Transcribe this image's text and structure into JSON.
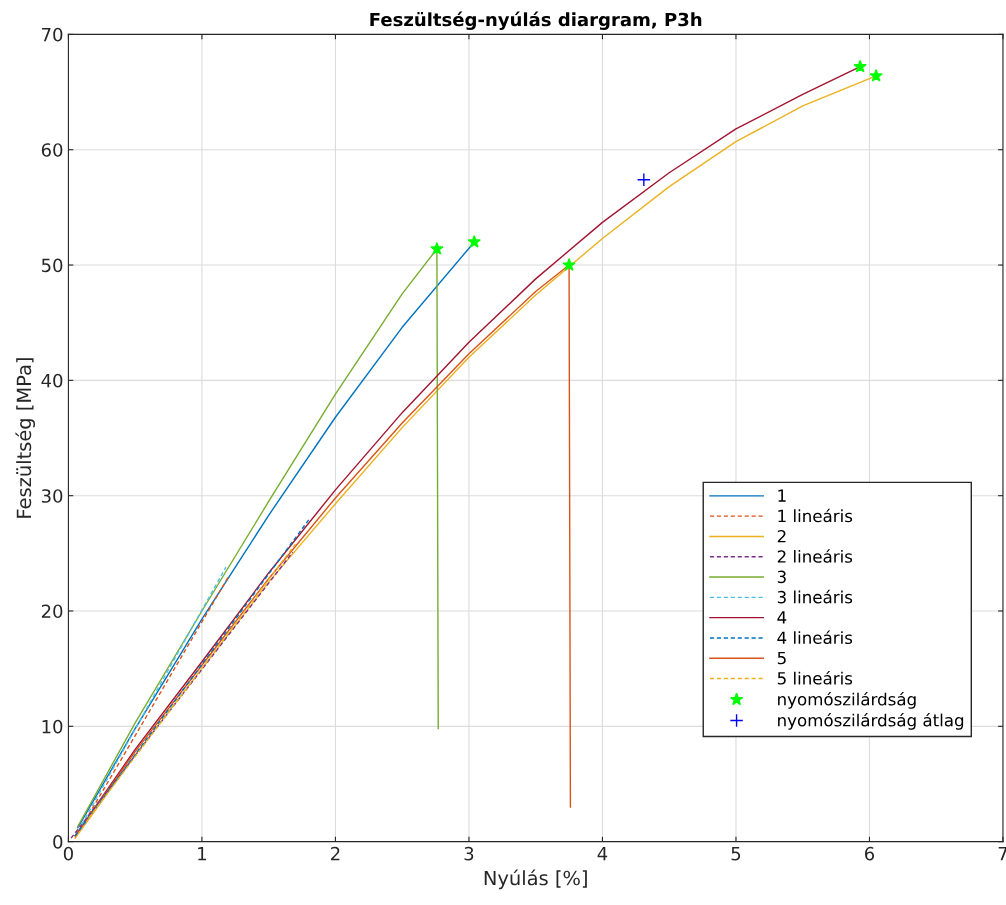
{
  "chart_data": {
    "type": "line",
    "title": "Feszültség-nyúlás diargram, P3h",
    "xlabel": "Nyúlás [%]",
    "ylabel": "Feszültség [MPa]",
    "xlim": [
      0,
      7
    ],
    "ylim": [
      0,
      70
    ],
    "xticks": [
      0,
      1,
      2,
      3,
      4,
      5,
      6,
      7
    ],
    "yticks": [
      0,
      10,
      20,
      30,
      40,
      50,
      60,
      70
    ],
    "grid": true,
    "legend": "bottom right",
    "series": [
      {
        "name": "1",
        "color": "#0072bd",
        "line_style": "solid",
        "x": [
          0.07,
          0.5,
          1,
          1.5,
          2,
          2.5,
          3.04
        ],
        "values": [
          1.2,
          9.8,
          19.3,
          28.3,
          36.8,
          44.6,
          52.0
        ]
      },
      {
        "name": "1 lineáris",
        "color": "#d95319",
        "line_style": "dashed",
        "x": [
          0.1,
          1.2
        ],
        "values": [
          1.3,
          23.0
        ]
      },
      {
        "name": "2",
        "color": "#edb120",
        "line_style": "solid",
        "x": [
          0.05,
          0.5,
          1,
          1.5,
          2,
          2.5,
          3,
          3.5,
          4,
          4.5,
          5,
          5.5,
          6.05
        ],
        "values": [
          0.3,
          7.5,
          15,
          22.5,
          29.3,
          35.9,
          42,
          47.4,
          52.3,
          56.8,
          60.7,
          63.8,
          66.4
        ]
      },
      {
        "name": "2 lineáris",
        "color": "#7e2f8e",
        "line_style": "dashed",
        "x": [
          0.02,
          1.68
        ],
        "values": [
          0.3,
          25.1
        ]
      },
      {
        "name": "3",
        "color": "#77ac30",
        "line_style": "solid",
        "x": [
          0.07,
          0.5,
          1,
          1.5,
          2,
          2.5,
          2.76,
          2.77
        ],
        "values": [
          1.3,
          10.3,
          20.0,
          29.5,
          38.8,
          47.5,
          51.4,
          9.8
        ]
      },
      {
        "name": "3 lineáris",
        "color": "#4dbeee",
        "line_style": "dashed",
        "x": [
          0.1,
          1.18
        ],
        "values": [
          1.5,
          23.8
        ]
      },
      {
        "name": "4",
        "color": "#a2142f",
        "line_style": "solid",
        "x": [
          0.05,
          0.5,
          1,
          1.5,
          2,
          2.5,
          3,
          3.5,
          4,
          4.5,
          5,
          5.5,
          5.93
        ],
        "values": [
          0.5,
          8,
          15.6,
          23.3,
          30.5,
          37.2,
          43.3,
          48.8,
          53.7,
          58,
          61.8,
          64.8,
          67.2
        ]
      },
      {
        "name": "4 lineáris",
        "color": "#0072bd",
        "line_style": "dashed",
        "x": [
          0.05,
          1.8
        ],
        "values": [
          0.5,
          27.9
        ]
      },
      {
        "name": "5",
        "color": "#d95319",
        "line_style": "solid",
        "x": [
          0.05,
          0.5,
          1,
          1.5,
          2,
          2.5,
          3,
          3.5,
          3.75,
          3.76
        ],
        "values": [
          0.5,
          7.8,
          15.3,
          22.8,
          29.8,
          36.3,
          42.3,
          47.7,
          50.0,
          3.0
        ]
      },
      {
        "name": "5 lineáris",
        "color": "#edb120",
        "line_style": "dashed",
        "x": [
          0.15,
          1.7
        ],
        "values": [
          2.0,
          25.8
        ]
      },
      {
        "name": "nyomószilárdság",
        "type": "scatter",
        "marker": "star",
        "color": "#00ff00",
        "x": [
          3.04,
          6.05,
          2.76,
          5.93,
          3.75
        ],
        "values": [
          52.0,
          66.4,
          51.4,
          67.2,
          50.0
        ]
      },
      {
        "name": "nyomószilárdság átlag",
        "type": "scatter",
        "marker": "cross",
        "color": "#0000ff",
        "x": [
          4.31
        ],
        "values": [
          57.4
        ]
      }
    ]
  }
}
